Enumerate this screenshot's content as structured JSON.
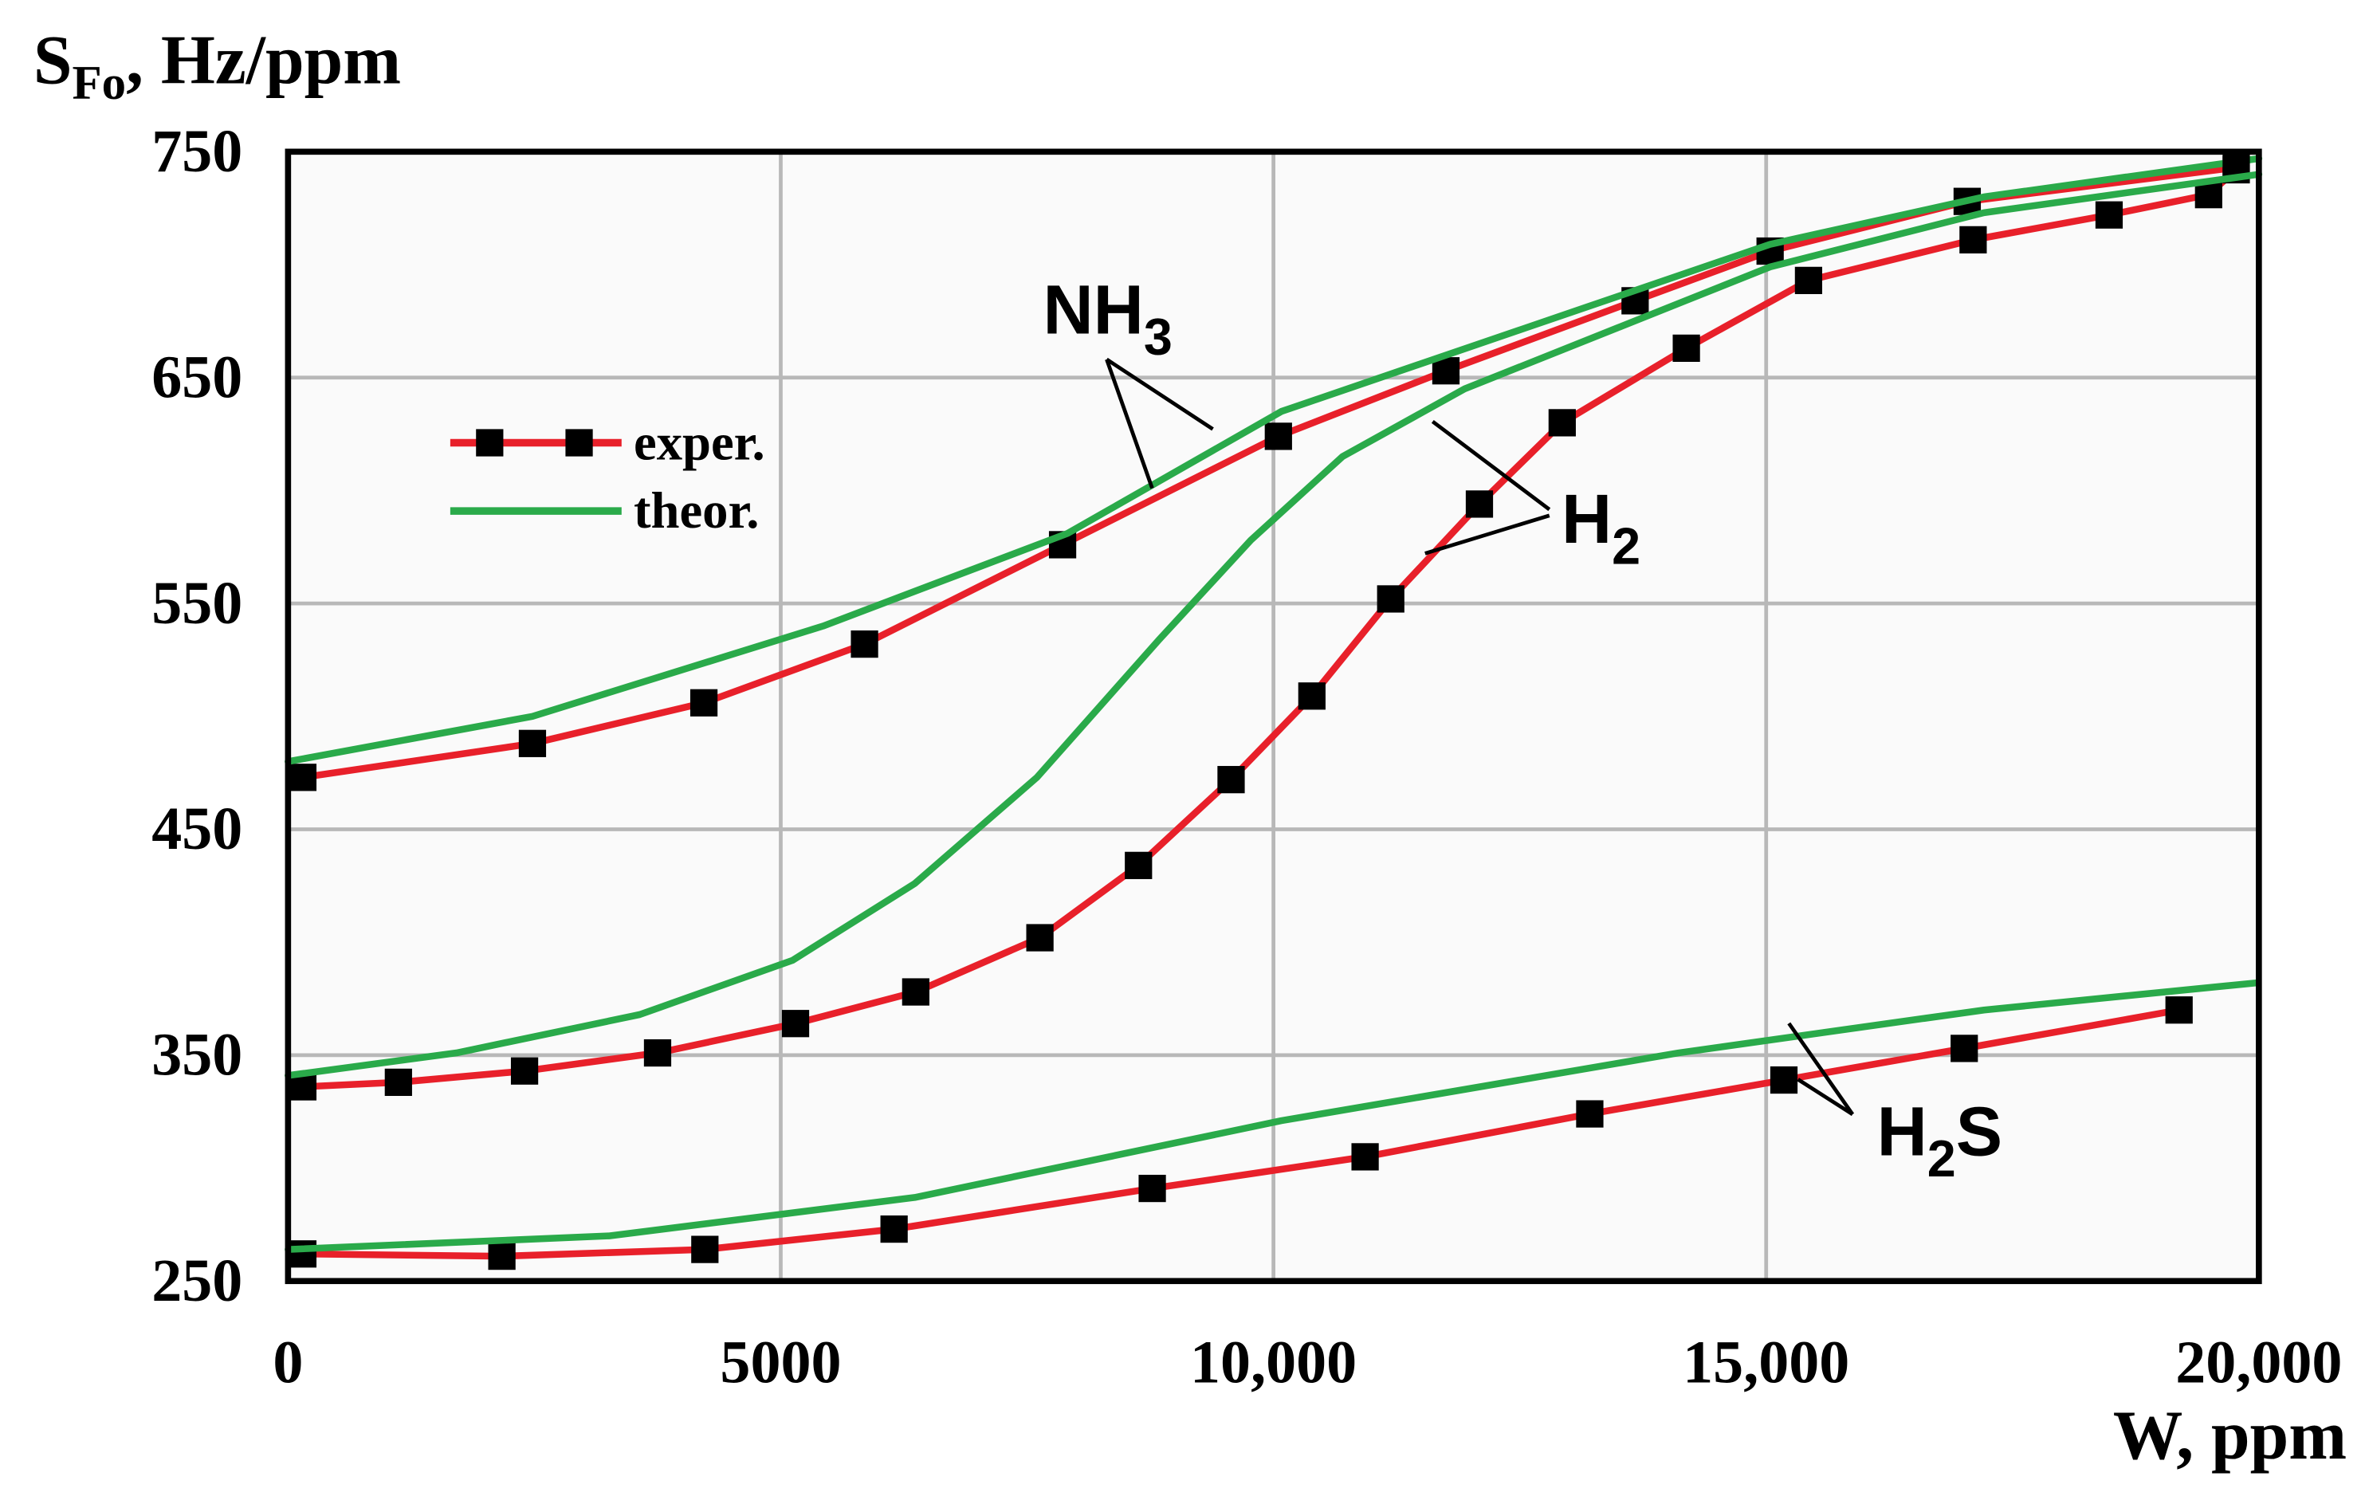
{
  "chart_data": {
    "type": "line",
    "y_label": {
      "main": "S",
      "sub": "Fo",
      "rest": ", Hz/ppm"
    },
    "x_label": "W, ppm",
    "xlim": [
      0,
      20000
    ],
    "xticks": [
      0,
      5000,
      {
        "value": 10000,
        "label": "10,000"
      },
      {
        "value": 15000,
        "label": "15,000"
      },
      {
        "value": 20000,
        "label": "20,000"
      }
    ],
    "ylim": [
      250,
      750
    ],
    "yticks": [
      250,
      350,
      450,
      550,
      650,
      750
    ],
    "grid": true,
    "legend": "upper left",
    "annotations": [
      {
        "text": "NH",
        "sub": "3"
      },
      {
        "text": "H",
        "sub": "2"
      },
      {
        "text": "H",
        "sub": "2",
        "rest": "S"
      }
    ],
    "series": [
      {
        "name": "exper.",
        "color": "#e8202a",
        "markers": true,
        "x": [
          150,
          2480,
          4220,
          5850,
          7860,
          10050,
          11750,
          13670,
          15040,
          17040,
          19770
        ],
        "values": [
          473,
          488,
          506,
          532,
          576,
          624,
          653,
          684,
          706,
          728,
          743
        ]
      },
      {
        "name": "theor.",
        "color": "#2aaa4a",
        "markers": false,
        "x": [
          0,
          2480,
          5430,
          7910,
          10080,
          12560,
          15040,
          17210,
          20000
        ],
        "values": [
          480,
          500,
          540,
          581,
          635,
          672,
          709,
          730,
          747
        ]
      },
      {
        "name": "exper.",
        "color": "#e8202a",
        "markers": true,
        "x": [
          150,
          1120,
          2400,
          3750,
          5150,
          6370,
          7630,
          8630,
          9570,
          10390,
          11190,
          12090,
          12930,
          14190,
          15430,
          17100,
          18480,
          19490,
          19770
        ],
        "values": [
          336,
          338,
          343,
          351,
          364,
          378,
          402,
          434,
          472,
          509,
          552,
          594,
          630,
          663,
          693,
          711,
          722,
          731,
          742
        ]
      },
      {
        "name": "theor.",
        "color": "#2aaa4a",
        "markers": false,
        "x": [
          0,
          1710,
          3570,
          5120,
          6360,
          7600,
          8840,
          9770,
          10700,
          11940,
          13490,
          15040,
          17210,
          20000
        ],
        "values": [
          341,
          351,
          368,
          392,
          426,
          473,
          534,
          578,
          615,
          645,
          672,
          699,
          723,
          740
        ]
      },
      {
        "name": "exper.",
        "color": "#e8202a",
        "markers": true,
        "x": [
          150,
          2170,
          4230,
          6150,
          8770,
          10930,
          13210,
          15180,
          17010,
          19190
        ],
        "values": [
          262,
          261,
          264,
          273,
          291,
          305,
          324,
          339,
          353,
          370
        ]
      },
      {
        "name": "theor.",
        "color": "#2aaa4a",
        "markers": false,
        "x": [
          0,
          3260,
          6360,
          10080,
          14110,
          17210,
          19970
        ],
        "values": [
          264,
          270,
          287,
          321,
          351,
          370,
          382
        ]
      }
    ]
  }
}
